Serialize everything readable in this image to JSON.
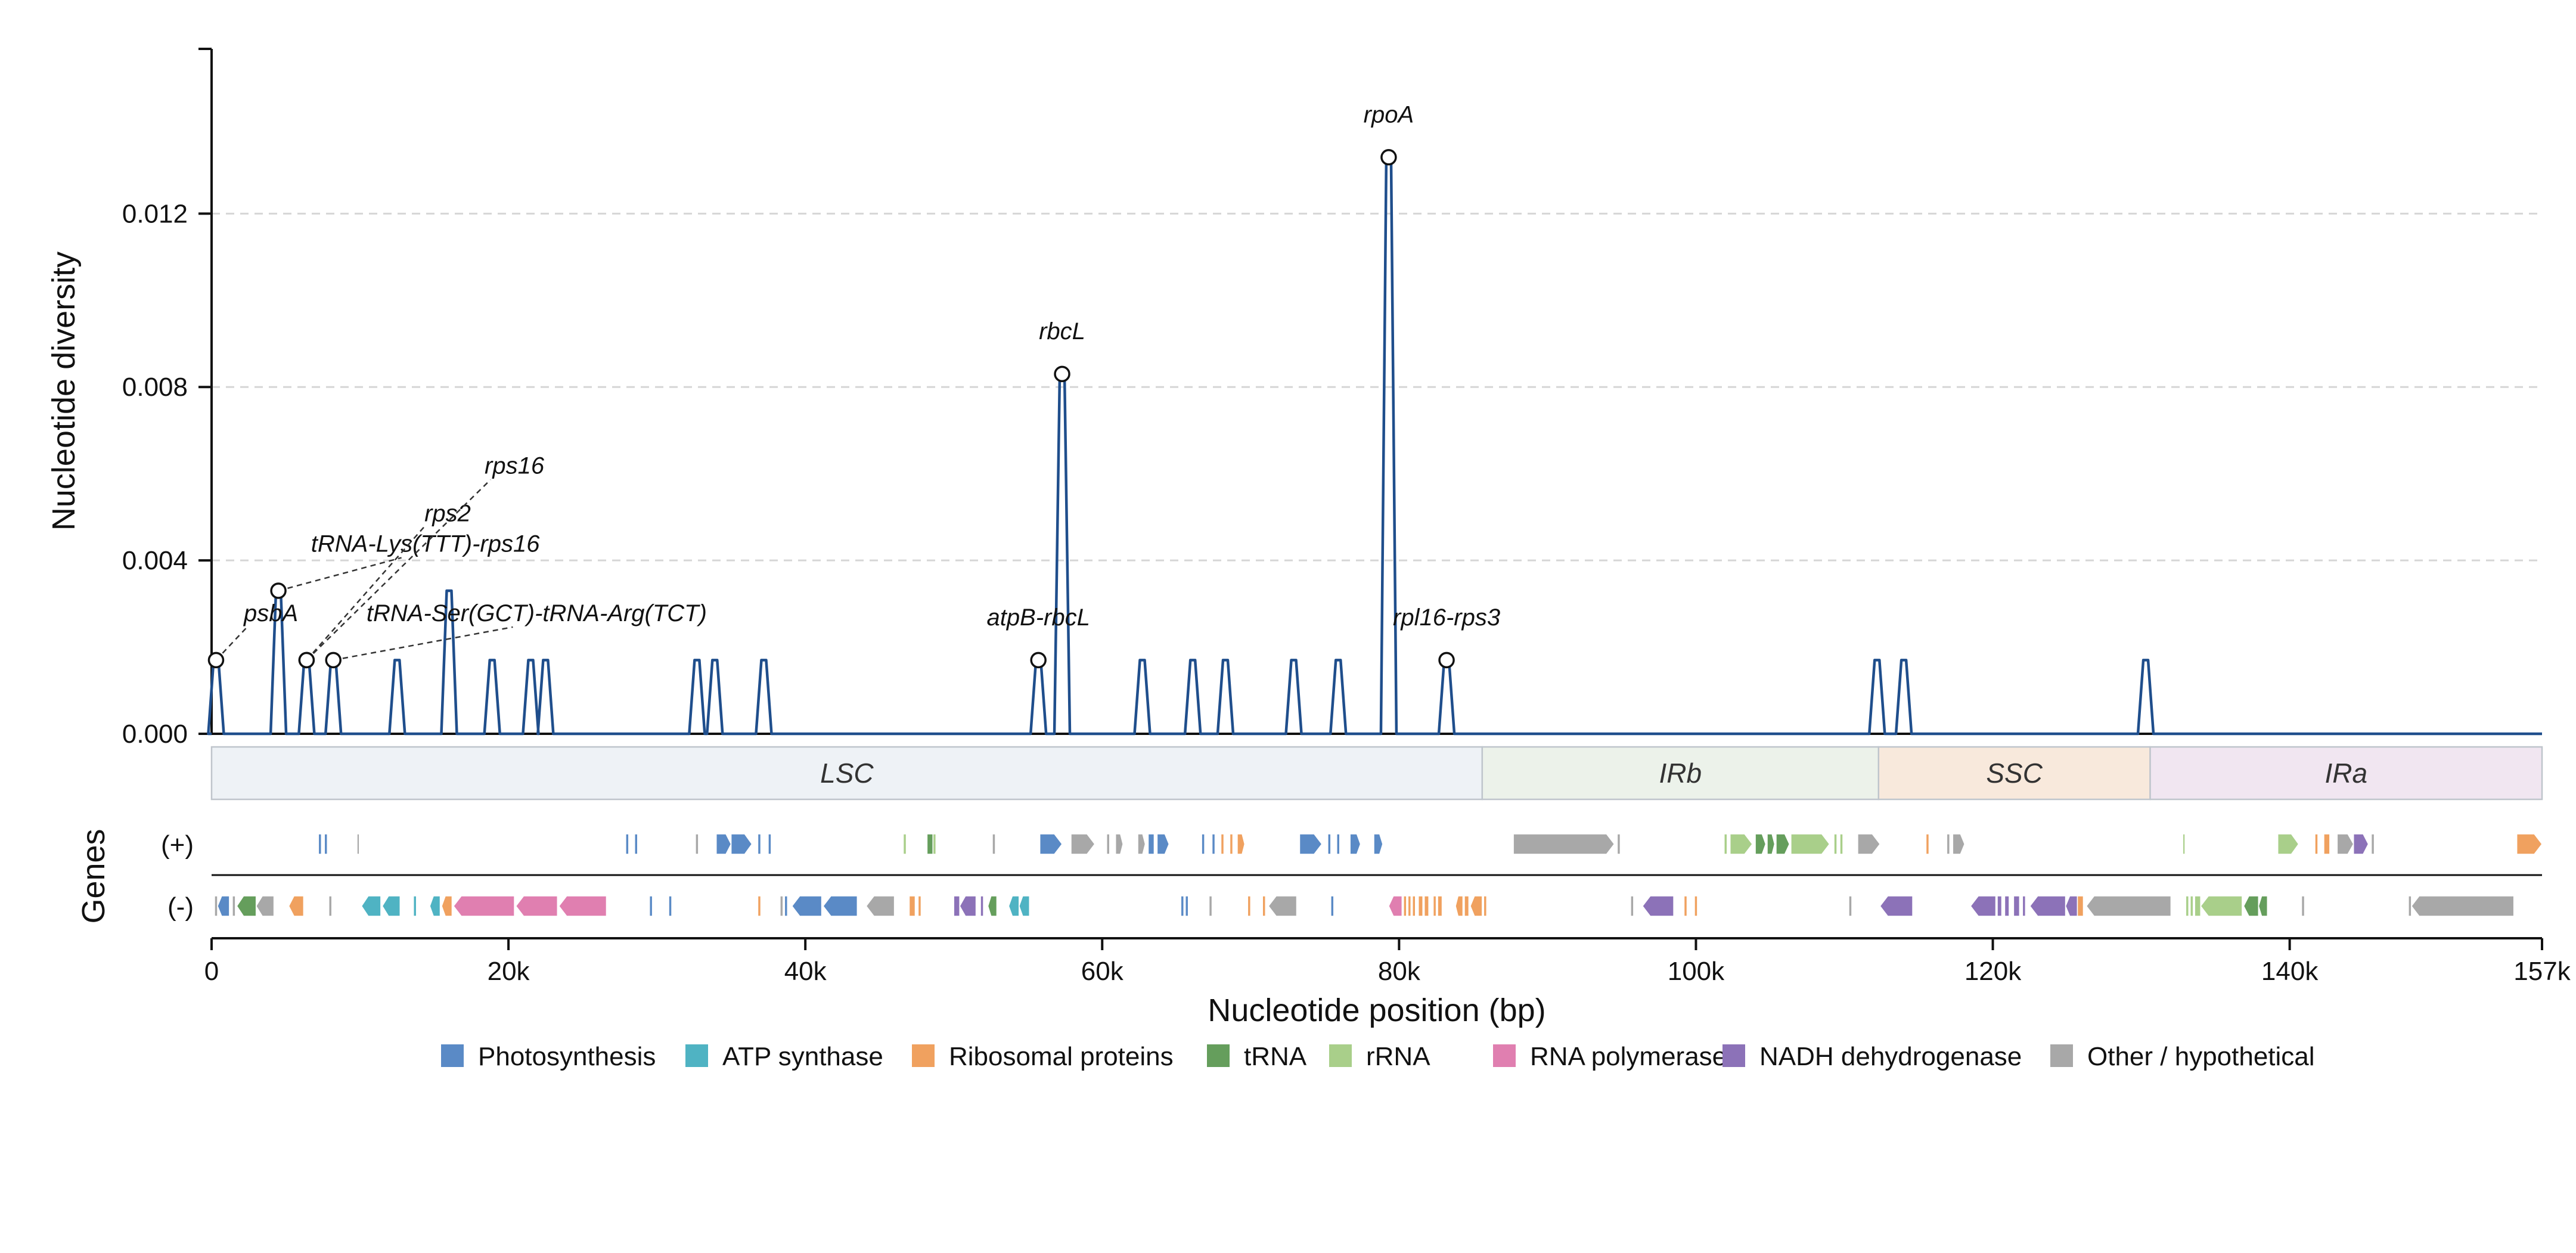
{
  "chart_data": {
    "type": "line",
    "ylabel": "Nucleotide diversity",
    "xlabel": "Nucleotide position (bp)",
    "xlim": [
      0,
      157000
    ],
    "ylim": [
      0,
      0.0158
    ],
    "y_ticks": [
      0.0,
      0.004,
      0.008,
      0.012
    ],
    "y_tick_labels": [
      "0.000",
      "0.004",
      "0.008",
      "0.012"
    ],
    "x_ticks": [
      0,
      20000,
      40000,
      60000,
      80000,
      100000,
      120000,
      140000,
      157000
    ],
    "x_tick_labels": [
      "0",
      "20k",
      "40k",
      "60k",
      "80k",
      "100k",
      "120k",
      "140k",
      "157k"
    ],
    "grid": "horizontal dashed",
    "line_color": "#1f4e8c",
    "peaks": [
      {
        "x": 300,
        "y": 0.0017
      },
      {
        "x": 4500,
        "y": 0.0033
      },
      {
        "x": 6400,
        "y": 0.0017
      },
      {
        "x": 8200,
        "y": 0.0017
      },
      {
        "x": 12500,
        "y": 0.0017
      },
      {
        "x": 16000,
        "y": 0.0033
      },
      {
        "x": 18900,
        "y": 0.0017
      },
      {
        "x": 21500,
        "y": 0.0017
      },
      {
        "x": 22500,
        "y": 0.0017
      },
      {
        "x": 32700,
        "y": 0.0017
      },
      {
        "x": 33900,
        "y": 0.0017
      },
      {
        "x": 37200,
        "y": 0.0017
      },
      {
        "x": 55700,
        "y": 0.0017
      },
      {
        "x": 57300,
        "y": 0.0083
      },
      {
        "x": 62700,
        "y": 0.0017
      },
      {
        "x": 66100,
        "y": 0.0017
      },
      {
        "x": 68300,
        "y": 0.0017
      },
      {
        "x": 72900,
        "y": 0.0017
      },
      {
        "x": 75900,
        "y": 0.0017
      },
      {
        "x": 79300,
        "y": 0.0133
      },
      {
        "x": 83200,
        "y": 0.0017
      },
      {
        "x": 112200,
        "y": 0.0017
      },
      {
        "x": 114000,
        "y": 0.0017
      },
      {
        "x": 130300,
        "y": 0.0017
      }
    ],
    "highlights": [
      {
        "label": "psbA",
        "x": 300,
        "y": 0.0017,
        "tx": 4000,
        "ty": 0.0026
      },
      {
        "label": "tRNA-Lys(TTT)-rps16",
        "x": 4500,
        "y": 0.0033,
        "tx": 14400,
        "ty": 0.0042
      },
      {
        "label": "rps2",
        "x": 6400,
        "y": 0.0017,
        "tx": 15900,
        "ty": 0.0049
      },
      {
        "label": "rps16",
        "x": 6400,
        "y": 0.0017,
        "tx": 20400,
        "ty": 0.006
      },
      {
        "label": "tRNA-Ser(GCT)-tRNA-Arg(TCT)",
        "x": 8200,
        "y": 0.0017,
        "tx": 21900,
        "ty": 0.0026
      },
      {
        "label": "atpB-rbcL",
        "x": 55700,
        "y": 0.0017,
        "tx": 55700,
        "ty": 0.0025
      },
      {
        "label": "rbcL",
        "x": 57300,
        "y": 0.0083,
        "tx": 57300,
        "ty": 0.0091
      },
      {
        "label": "rpoA",
        "x": 79300,
        "y": 0.0133,
        "tx": 79300,
        "ty": 0.0141
      },
      {
        "label": "rpl16-rps3",
        "x": 83200,
        "y": 0.0017,
        "tx": 83200,
        "ty": 0.0025
      }
    ],
    "regions": [
      {
        "label": "LSC",
        "start": 0,
        "end": 85600,
        "color": "#eef2f6"
      },
      {
        "label": "IRb",
        "start": 85600,
        "end": 112300,
        "color": "#ecf2ea"
      },
      {
        "label": "SSC",
        "start": 112300,
        "end": 130600,
        "color": "#f8e9dc"
      },
      {
        "label": "IRa",
        "start": 130600,
        "end": 157000,
        "color": "#f1e6f1"
      }
    ],
    "genes_axis_label": "Genes",
    "strand_labels": [
      "(+)",
      "(-)"
    ],
    "categories": [
      {
        "name": "Photosynthesis",
        "color": "#5a8ac6"
      },
      {
        "name": "ATP synthase",
        "color": "#4fb3c3"
      },
      {
        "name": "Ribosomal proteins",
        "color": "#f0a15f"
      },
      {
        "name": "tRNA",
        "color": "#659e5c"
      },
      {
        "name": "rRNA",
        "color": "#a9cf8a"
      },
      {
        "name": "RNA polymerase",
        "color": "#e07fb0"
      },
      {
        "name": "NADH dehydrogenase",
        "color": "#8c72b8"
      },
      {
        "name": "Other / hypothetical",
        "color": "#a8a8a8"
      }
    ],
    "genes_plus": [
      [
        7200,
        7400,
        0
      ],
      [
        7600,
        7800,
        0
      ],
      [
        9800,
        9950,
        7
      ],
      [
        27900,
        28100,
        0
      ],
      [
        28500,
        28700,
        0
      ],
      [
        32600,
        32800,
        7
      ],
      [
        34000,
        35000,
        0
      ],
      [
        35000,
        36400,
        0
      ],
      [
        36800,
        37000,
        0
      ],
      [
        37500,
        37700,
        0
      ],
      [
        46600,
        46800,
        4
      ],
      [
        48200,
        48600,
        3
      ],
      [
        48600,
        48800,
        4
      ],
      [
        52600,
        52800,
        7
      ],
      [
        55800,
        57300,
        0
      ],
      [
        57900,
        59500,
        7
      ],
      [
        60300,
        60500,
        7
      ],
      [
        60900,
        61400,
        7
      ],
      [
        62400,
        62900,
        7
      ],
      [
        63100,
        63500,
        0
      ],
      [
        63700,
        64500,
        0
      ],
      [
        66700,
        66900,
        0
      ],
      [
        67400,
        67600,
        0
      ],
      [
        68000,
        68200,
        2
      ],
      [
        68600,
        68800,
        2
      ],
      [
        69100,
        69600,
        2
      ],
      [
        73300,
        74800,
        0
      ],
      [
        75200,
        75400,
        0
      ],
      [
        75800,
        76000,
        0
      ],
      [
        76700,
        77400,
        0
      ],
      [
        78300,
        78900,
        0
      ],
      [
        87700,
        94500,
        7
      ],
      [
        94700,
        94900,
        7
      ],
      [
        101900,
        102100,
        4
      ],
      [
        102300,
        103800,
        4
      ],
      [
        104000,
        104700,
        3
      ],
      [
        104800,
        105300,
        3
      ],
      [
        105400,
        106300,
        3
      ],
      [
        106400,
        109000,
        4
      ],
      [
        109300,
        109500,
        4
      ],
      [
        109700,
        109900,
        4
      ],
      [
        110900,
        112400,
        7
      ],
      [
        115500,
        115700,
        2
      ],
      [
        116900,
        117100,
        7
      ],
      [
        117300,
        118100,
        7
      ],
      [
        132800,
        132950,
        4
      ],
      [
        139200,
        140600,
        4
      ],
      [
        141700,
        141900,
        2
      ],
      [
        142300,
        142700,
        2
      ],
      [
        143200,
        144300,
        7
      ],
      [
        144300,
        145300,
        6
      ],
      [
        145500,
        145700,
        7
      ],
      [
        155300,
        157000,
        2
      ]
    ],
    "genes_minus": [
      [
        200,
        400,
        7
      ],
      [
        400,
        1200,
        0
      ],
      [
        1400,
        1600,
        7
      ],
      [
        1700,
        3000,
        3
      ],
      [
        3000,
        4200,
        7
      ],
      [
        5200,
        6200,
        2
      ],
      [
        7900,
        8100,
        7
      ],
      [
        10100,
        11400,
        1
      ],
      [
        11500,
        12700,
        1
      ],
      [
        13600,
        13800,
        1
      ],
      [
        14700,
        15400,
        1
      ],
      [
        15500,
        16200,
        2
      ],
      [
        16300,
        20400,
        5
      ],
      [
        20500,
        23300,
        5
      ],
      [
        23400,
        26600,
        5
      ],
      [
        29500,
        29700,
        0
      ],
      [
        30800,
        31000,
        0
      ],
      [
        36800,
        37000,
        2
      ],
      [
        38300,
        38500,
        7
      ],
      [
        38600,
        38800,
        0
      ],
      [
        39100,
        41100,
        0
      ],
      [
        41200,
        43500,
        0
      ],
      [
        44100,
        46000,
        7
      ],
      [
        47000,
        47400,
        2
      ],
      [
        47600,
        47800,
        2
      ],
      [
        50000,
        50400,
        6
      ],
      [
        50400,
        51500,
        6
      ],
      [
        51800,
        52000,
        6
      ],
      [
        52300,
        52900,
        3
      ],
      [
        53700,
        54400,
        1
      ],
      [
        54400,
        55100,
        1
      ],
      [
        65300,
        65500,
        0
      ],
      [
        65600,
        65800,
        0
      ],
      [
        67200,
        67400,
        7
      ],
      [
        69800,
        70000,
        2
      ],
      [
        70800,
        71000,
        2
      ],
      [
        71200,
        73100,
        7
      ],
      [
        75400,
        75600,
        0
      ],
      [
        79300,
        80200,
        5
      ],
      [
        80300,
        80500,
        2
      ],
      [
        80600,
        80800,
        2
      ],
      [
        80900,
        81100,
        2
      ],
      [
        81300,
        81600,
        2
      ],
      [
        81700,
        82000,
        2
      ],
      [
        82300,
        82500,
        2
      ],
      [
        82600,
        82900,
        2
      ],
      [
        83800,
        84300,
        2
      ],
      [
        84400,
        84700,
        2
      ],
      [
        84800,
        85600,
        2
      ],
      [
        85700,
        85900,
        2
      ],
      [
        95600,
        95800,
        7
      ],
      [
        96400,
        98500,
        6
      ],
      [
        99200,
        99400,
        2
      ],
      [
        99900,
        100100,
        2
      ],
      [
        110300,
        110500,
        7
      ],
      [
        112400,
        114600,
        6
      ],
      [
        118500,
        120200,
        6
      ],
      [
        120300,
        120600,
        6
      ],
      [
        120800,
        121100,
        6
      ],
      [
        121400,
        121800,
        6
      ],
      [
        122000,
        122200,
        6
      ],
      [
        122500,
        124900,
        6
      ],
      [
        124900,
        125700,
        6
      ],
      [
        125700,
        126100,
        2
      ],
      [
        126300,
        132000,
        7
      ],
      [
        133000,
        133200,
        4
      ],
      [
        133300,
        133500,
        4
      ],
      [
        133600,
        134000,
        4
      ],
      [
        134000,
        136800,
        4
      ],
      [
        136900,
        137900,
        3
      ],
      [
        137900,
        138500,
        3
      ],
      [
        140800,
        141000,
        7
      ],
      [
        148000,
        148200,
        7
      ],
      [
        148200,
        155100,
        7
      ]
    ]
  }
}
